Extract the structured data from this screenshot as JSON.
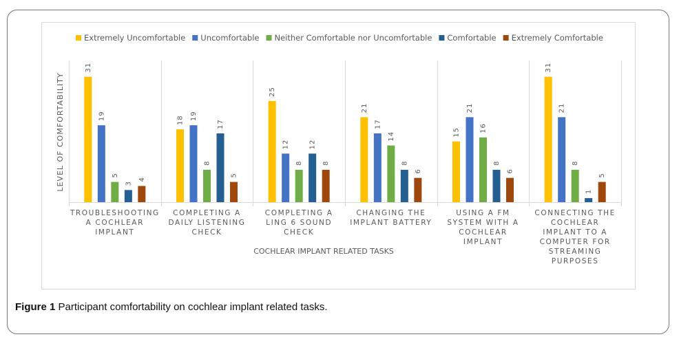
{
  "chart_data": {
    "type": "bar",
    "categories": [
      "TROUBLESHOOTING A COCHLEAR IMPLANT",
      "COMPLETING A DAILY LISTENING CHECK",
      "COMPLETING A LING 6 SOUND CHECK",
      "CHANGING THE IMPLANT BATTERY",
      "USING A FM SYSTEM WITH A COCHLEAR IMPLANT",
      "CONNECTING THE COCHLEAR IMPLANT TO A COMPUTER FOR STREAMING PURPOSES"
    ],
    "series": [
      {
        "name": "Extremely Uncomfortable",
        "color": "#ffc000",
        "values": [
          31,
          18,
          25,
          21,
          15,
          31
        ]
      },
      {
        "name": "Uncomfortable",
        "color": "#4472c4",
        "values": [
          19,
          19,
          12,
          17,
          21,
          21
        ]
      },
      {
        "name": "Neither Comfortable nor Uncomfortable",
        "color": "#70ad47",
        "values": [
          5,
          8,
          8,
          14,
          16,
          8
        ]
      },
      {
        "name": "Comfortable",
        "color": "#255e91",
        "values": [
          3,
          17,
          12,
          8,
          8,
          1
        ]
      },
      {
        "name": "Extremely Comfortable",
        "color": "#9e480e",
        "values": [
          4,
          5,
          8,
          6,
          6,
          5
        ]
      }
    ],
    "ylim": [
      0,
      35
    ],
    "x_label": "COCHLEAR IMPLANT RELATED TASKS",
    "y_label": "LEVEL OF COMFORTABILITY",
    "legend": "top"
  },
  "caption": {
    "label": "Figure 1",
    "text": "Participant comfortability on cochlear implant related tasks."
  }
}
